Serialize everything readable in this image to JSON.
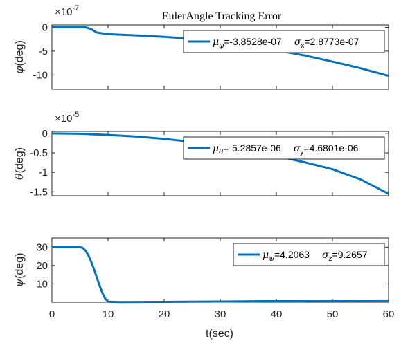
{
  "figure": {
    "title": "EulerAngle Tracking Error",
    "xlabel": "t(sec)"
  },
  "chart_data": [
    {
      "type": "line",
      "title": "EulerAngle Tracking Error",
      "ylabel": "φ(deg)",
      "ylabel_symbol": "φ",
      "ylabel_unit": "(deg)",
      "exponent_base": "×10",
      "exponent_power": "-7",
      "xlim": [
        0,
        60
      ],
      "ylim": [
        -13,
        0.5
      ],
      "xticks": [
        0,
        10,
        20,
        30,
        40,
        50,
        60
      ],
      "yticks": [
        0,
        -5,
        -10
      ],
      "ytick_labels": [
        "0",
        "-5",
        "-10"
      ],
      "grid": false,
      "legend_position": "top-right",
      "color": "#0072BD",
      "series": [
        {
          "mu_symbol": "μ",
          "mu_sub": "φ",
          "mu_value": "=-3.8528e-07",
          "sigma_symbol": "σ",
          "sigma_sub": "x",
          "sigma_value": "=2.8773e-07",
          "x": [
            0,
            5,
            6,
            7,
            8,
            10,
            15,
            20,
            25,
            30,
            35,
            40,
            45,
            50,
            55,
            60
          ],
          "y": [
            0,
            0,
            0,
            -0.4,
            -1.1,
            -1.45,
            -1.7,
            -2.0,
            -2.4,
            -3.0,
            -3.8,
            -4.8,
            -5.9,
            -7.2,
            -8.6,
            -10.2
          ]
        }
      ]
    },
    {
      "type": "line",
      "ylabel": "θ(deg)",
      "ylabel_symbol": "θ",
      "ylabel_unit": "(deg)",
      "exponent_base": "×10",
      "exponent_power": "-5",
      "xlim": [
        0,
        60
      ],
      "ylim": [
        -1.6,
        0.05
      ],
      "xticks": [
        0,
        10,
        20,
        30,
        40,
        50,
        60
      ],
      "yticks": [
        0,
        -0.5,
        -1,
        -1.5
      ],
      "ytick_labels": [
        "0",
        "-0.5",
        "-1",
        "-1.5"
      ],
      "grid": false,
      "legend_position": "top-right",
      "color": "#0072BD",
      "series": [
        {
          "mu_symbol": "μ",
          "mu_sub": "θ",
          "mu_value": "=-5.2857e-06",
          "sigma_symbol": "σ",
          "sigma_sub": "y",
          "sigma_value": "=4.6801e-06",
          "x": [
            0,
            5,
            10,
            15,
            20,
            25,
            30,
            35,
            40,
            45,
            50,
            55,
            60
          ],
          "y": [
            0,
            -0.01,
            -0.04,
            -0.08,
            -0.14,
            -0.22,
            -0.32,
            -0.44,
            -0.58,
            -0.74,
            -0.92,
            -1.18,
            -1.55
          ]
        }
      ]
    },
    {
      "type": "line",
      "ylabel": "ψ(deg)",
      "ylabel_symbol": "ψ",
      "ylabel_unit": "(deg)",
      "xlabel": "t(sec)",
      "xlim": [
        0,
        60
      ],
      "ylim": [
        0,
        35
      ],
      "xticks": [
        0,
        10,
        20,
        30,
        40,
        50,
        60
      ],
      "xtick_labels": [
        "0",
        "10",
        "20",
        "30",
        "40",
        "50",
        "60"
      ],
      "yticks": [
        10,
        20,
        30
      ],
      "ytick_labels": [
        "10",
        "20",
        "30"
      ],
      "grid": false,
      "legend_position": "top-right",
      "color": "#0072BD",
      "series": [
        {
          "mu_symbol": "μ",
          "mu_sub": "ψ",
          "mu_value": "=4.2063",
          "sigma_symbol": "σ",
          "sigma_sub": "z",
          "sigma_value": "=9.2657",
          "x": [
            0,
            4,
            5,
            5.5,
            6,
            6.5,
            7,
            7.5,
            8,
            8.5,
            9,
            9.5,
            10,
            12,
            20,
            30,
            40,
            50,
            60
          ],
          "y": [
            30,
            30,
            30,
            29.5,
            28,
            25.5,
            22,
            18,
            13.5,
            9,
            5,
            2,
            0.3,
            0.1,
            0.2,
            0.4,
            0.6,
            0.8,
            1.0
          ]
        }
      ]
    }
  ]
}
